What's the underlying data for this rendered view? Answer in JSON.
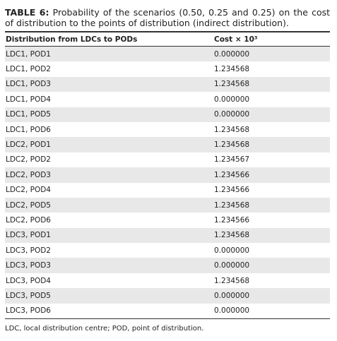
{
  "caption": {
    "label": "TABLE 6:",
    "text": "Probability of the scenarios (0.50, 0.25 and 0.25) on the cost of distribution to the points of distribution (indirect distribution)."
  },
  "table": {
    "header": [
      "Distribution from LDCs to PODs",
      "Cost × 10³"
    ],
    "rows": [
      [
        "LDC1, POD1",
        "0.000000"
      ],
      [
        "LDC1, POD2",
        "1.234568"
      ],
      [
        "LDC1, POD3",
        "1.234568"
      ],
      [
        "LDC1, POD4",
        "0.000000"
      ],
      [
        "LDC1, POD5",
        "0.000000"
      ],
      [
        "LDC1, POD6",
        "1.234568"
      ],
      [
        "LDC2, POD1",
        "1.234568"
      ],
      [
        "LDC2, POD2",
        "1.234567"
      ],
      [
        "LDC2, POD3",
        "1.234566"
      ],
      [
        "LDC2, POD4",
        "1.234566"
      ],
      [
        "LDC2, POD5",
        "1.234568"
      ],
      [
        "LDC2, POD6",
        "1.234566"
      ],
      [
        "LDC3, POD1",
        "1.234568"
      ],
      [
        "LDC3, POD2",
        "0.000000"
      ],
      [
        "LDC3, POD3",
        "0.000000"
      ],
      [
        "LDC3, POD4",
        "1.234568"
      ],
      [
        "LDC3, POD5",
        "0.000000"
      ],
      [
        "LDC3, POD6",
        "0.000000"
      ]
    ]
  },
  "footnote": "LDC, local distribution centre; POD, point of distribution."
}
